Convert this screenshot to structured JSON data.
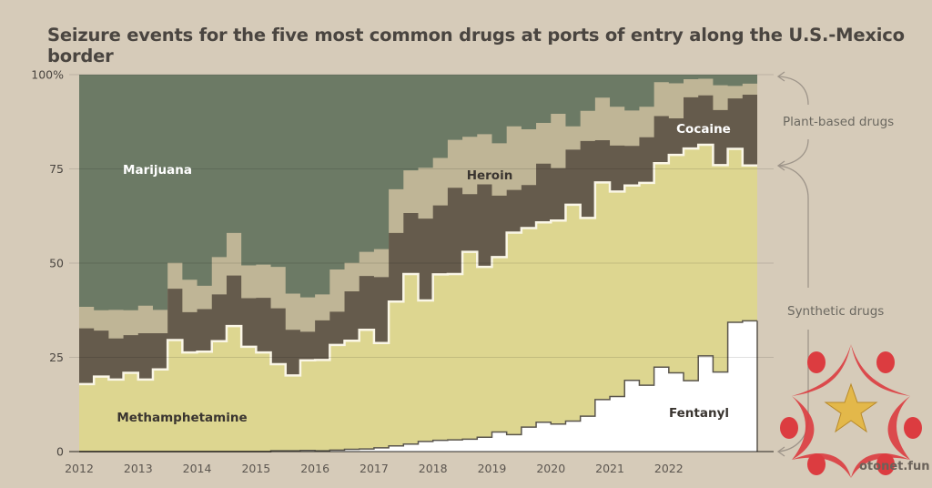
{
  "title": "Seizure events for the five most common drugs at ports of entry along the U.S.-Mexico border",
  "colors": {
    "background": "#d6cbb9",
    "marijuana": "#6c7a65",
    "heroin": "#bfb596",
    "cocaine": "#655b4c",
    "methamphetamine": "#ddd690",
    "fentanyl": "#ffffff",
    "axis": "#9a9080",
    "text": "#4a4540"
  },
  "annotations": {
    "plant_based": "Plant-based drugs",
    "synthetic": "Synthetic drugs"
  },
  "watermark": "otonet.fun",
  "chart_data": {
    "type": "area",
    "stacked": true,
    "normalized": true,
    "step": true,
    "title": "Seizure events for the five most common drugs at ports of entry along the U.S.-Mexico border",
    "xlabel": "",
    "ylabel": "",
    "ylim": [
      0,
      100
    ],
    "yticks": [
      0,
      25,
      50,
      75,
      100
    ],
    "ytick_labels": [
      "0",
      "25",
      "50",
      "75",
      "100%"
    ],
    "xticks": [
      "2012",
      "2013",
      "2014",
      "2015",
      "2016",
      "2017",
      "2018",
      "2019",
      "2020",
      "2021",
      "2022"
    ],
    "x_start": "2012 Q1",
    "x_end": "2022 Q3",
    "frequency": "quarterly",
    "grid": true,
    "legend": "inline labels",
    "series_order_bottom_to_top": [
      "Fentanyl",
      "Methamphetamine",
      "Cocaine",
      "Heroin",
      "Marijuana"
    ],
    "series": [
      {
        "name": "Fentanyl",
        "label_color": "#3a3530",
        "values": [
          0,
          0,
          0,
          0,
          0,
          0,
          0,
          0,
          0,
          0,
          0,
          0,
          0,
          0.2,
          0.2,
          0.3,
          0.2,
          0.4,
          0.6,
          0.7,
          1.0,
          1.5,
          2.0,
          2.7,
          3.0,
          3.1,
          3.3,
          3.8,
          5.2,
          4.5,
          6.5,
          7.8,
          7.3,
          8.1,
          9.4,
          13.8,
          14.6,
          18.9,
          17.6,
          22.4,
          20.9,
          18.8,
          25.4,
          21.1,
          34.3,
          34.7
        ]
      },
      {
        "name": "Methamphetamine",
        "label_color": "#3a3530",
        "values": [
          17.9,
          19.9,
          19.1,
          20.9,
          19.1,
          21.8,
          29.6,
          26.3,
          26.5,
          29.3,
          33.3,
          27.8,
          26.3,
          23.0,
          20.0,
          23.9,
          24.1,
          27.9,
          28.8,
          31.6,
          27.8,
          38.3,
          45.1,
          37.4,
          44.0,
          44.0,
          49.7,
          45.2,
          46.4,
          53.6,
          52.8,
          53.0,
          54.0,
          57.4,
          52.6,
          57.6,
          54.4,
          51.7,
          53.7,
          54.1,
          57.8,
          61.6,
          56.0,
          54.9,
          46.0,
          41.2
        ]
      },
      {
        "name": "Cocaine",
        "label_color": "#ffffff",
        "values": [
          14.8,
          12.2,
          10.9,
          10.0,
          12.3,
          9.6,
          13.6,
          10.7,
          11.3,
          12.4,
          13.4,
          12.9,
          14.5,
          14.8,
          12.1,
          7.6,
          10.5,
          8.8,
          13.1,
          14.3,
          17.5,
          18.2,
          16.2,
          21.7,
          18.3,
          22.9,
          15.3,
          21.9,
          16.3,
          11.3,
          11.4,
          15.6,
          13.9,
          14.6,
          20.4,
          11.2,
          12.2,
          10.5,
          12.1,
          12.5,
          9.7,
          13.6,
          13.1,
          14.6,
          13.4,
          18.8
        ]
      },
      {
        "name": "Heroin",
        "label_color": "#3a3530",
        "values": [
          5.7,
          5.4,
          7.6,
          6.6,
          7.3,
          6.2,
          6.9,
          8.6,
          6.2,
          9.9,
          11.3,
          8.7,
          8.8,
          11.0,
          9.6,
          9.1,
          6.9,
          11.2,
          7.6,
          6.4,
          7.4,
          11.6,
          11.3,
          13.5,
          12.6,
          12.7,
          15.2,
          13.3,
          13.9,
          16.9,
          14.8,
          10.8,
          14.4,
          6.2,
          8.0,
          11.3,
          10.3,
          9.4,
          8.1,
          9.0,
          9.3,
          4.8,
          4.4,
          6.6,
          3.3,
          2.9
        ]
      },
      {
        "name": "Marijuana",
        "label_color": "#ffffff",
        "values": [
          61.6,
          62.5,
          62.4,
          62.5,
          61.3,
          62.4,
          49.9,
          54.4,
          56.0,
          48.4,
          42.0,
          50.6,
          50.4,
          51.0,
          58.1,
          59.1,
          58.3,
          51.7,
          49.9,
          47.0,
          46.3,
          30.4,
          25.4,
          24.7,
          22.1,
          17.3,
          16.5,
          15.8,
          18.2,
          13.7,
          14.5,
          12.8,
          10.4,
          13.7,
          9.6,
          6.1,
          8.5,
          9.5,
          8.5,
          2.0,
          2.3,
          1.2,
          1.1,
          2.8,
          3.0,
          2.4
        ]
      }
    ],
    "inline_labels": [
      "Marijuana",
      "Heroin",
      "Cocaine",
      "Methamphetamine",
      "Fentanyl"
    ]
  }
}
